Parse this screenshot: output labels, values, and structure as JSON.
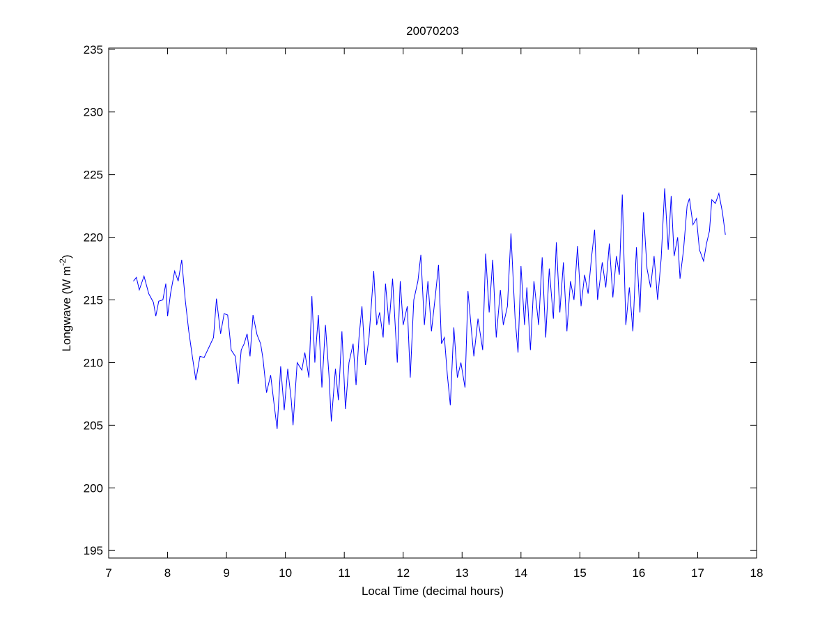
{
  "chart_data": {
    "type": "line",
    "title": "20070203",
    "xlabel": "Local Time (decimal hours)",
    "ylabel": [
      "Longwave (W m",
      "-2",
      ")"
    ],
    "xlim": [
      7,
      18
    ],
    "ylim": [
      194.4,
      235.1
    ],
    "xticks": [
      7,
      8,
      9,
      10,
      11,
      12,
      13,
      14,
      15,
      16,
      17,
      18
    ],
    "yticks": [
      195,
      200,
      205,
      210,
      215,
      220,
      225,
      230,
      235
    ],
    "grid": false,
    "x": [
      7.42,
      7.47,
      7.52,
      7.6,
      7.68,
      7.76,
      7.8,
      7.85,
      7.92,
      7.97,
      8.0,
      8.05,
      8.12,
      8.18,
      8.24,
      8.3,
      8.36,
      8.42,
      8.48,
      8.55,
      8.62,
      8.7,
      8.78,
      8.83,
      8.9,
      8.96,
      9.02,
      9.08,
      9.15,
      9.2,
      9.25,
      9.3,
      9.35,
      9.4,
      9.45,
      9.52,
      9.58,
      9.62,
      9.68,
      9.75,
      9.8,
      9.86,
      9.92,
      9.98,
      10.04,
      10.1,
      10.13,
      10.2,
      10.28,
      10.33,
      10.4,
      10.45,
      10.5,
      10.56,
      10.62,
      10.68,
      10.74,
      10.78,
      10.85,
      10.9,
      10.96,
      11.02,
      11.08,
      11.15,
      11.2,
      11.25,
      11.3,
      11.36,
      11.42,
      11.5,
      11.55,
      11.6,
      11.66,
      11.7,
      11.76,
      11.82,
      11.9,
      11.95,
      12.0,
      12.07,
      12.12,
      12.18,
      12.25,
      12.3,
      12.36,
      12.42,
      12.48,
      12.55,
      12.6,
      12.65,
      12.7,
      12.75,
      12.8,
      12.86,
      12.92,
      12.98,
      13.05,
      13.1,
      13.16,
      13.2,
      13.27,
      13.35,
      13.4,
      13.46,
      13.52,
      13.58,
      13.65,
      13.7,
      13.77,
      13.83,
      13.9,
      13.95,
      14.0,
      14.06,
      14.1,
      14.16,
      14.22,
      14.3,
      14.36,
      14.42,
      14.48,
      14.55,
      14.6,
      14.66,
      14.72,
      14.78,
      14.84,
      14.9,
      14.96,
      15.02,
      15.08,
      15.14,
      15.2,
      15.25,
      15.3,
      15.38,
      15.44,
      15.5,
      15.56,
      15.62,
      15.67,
      15.72,
      15.78,
      15.84,
      15.9,
      15.96,
      16.02,
      16.08,
      16.14,
      16.2,
      16.26,
      16.32,
      16.38,
      16.44,
      16.5,
      16.55,
      16.6,
      16.66,
      16.7,
      16.76,
      16.82,
      16.86,
      16.92,
      16.98,
      17.03,
      17.1,
      17.15,
      17.2,
      17.24,
      17.3,
      17.36,
      17.42,
      17.47
    ],
    "series": [
      {
        "color": "#0000ff",
        "values": [
          216.5,
          216.8,
          215.8,
          216.9,
          215.5,
          214.8,
          213.7,
          214.9,
          215.0,
          216.3,
          213.7,
          215.5,
          217.3,
          216.5,
          218.2,
          215.0,
          212.5,
          210.5,
          208.6,
          210.5,
          210.4,
          211.2,
          212.0,
          215.1,
          212.3,
          213.9,
          213.8,
          211.0,
          210.5,
          208.3,
          211.0,
          211.5,
          212.3,
          210.5,
          213.8,
          212.2,
          211.5,
          210.3,
          207.6,
          209.0,
          207.0,
          204.7,
          209.7,
          206.2,
          209.5,
          207.0,
          205.0,
          210.0,
          209.4,
          210.8,
          208.8,
          215.3,
          210.0,
          213.8,
          208.0,
          213.0,
          209.0,
          205.3,
          209.5,
          207.0,
          212.5,
          206.3,
          210.0,
          211.5,
          208.2,
          212.0,
          214.5,
          209.8,
          212.0,
          217.3,
          213.0,
          214.0,
          212.0,
          216.3,
          213.0,
          216.7,
          210.0,
          216.5,
          213.0,
          214.5,
          208.8,
          215.0,
          216.5,
          218.6,
          213.0,
          216.5,
          212.5,
          215.5,
          217.8,
          211.5,
          212.0,
          209.0,
          206.6,
          212.8,
          208.8,
          210.0,
          208.0,
          215.7,
          212.5,
          210.5,
          213.5,
          211.0,
          218.7,
          214.0,
          218.2,
          212.0,
          215.8,
          213.0,
          214.5,
          220.3,
          213.5,
          210.8,
          217.7,
          213.0,
          216.0,
          211.0,
          216.5,
          213.0,
          218.4,
          212.0,
          217.5,
          213.5,
          219.6,
          214.0,
          218.0,
          212.5,
          216.5,
          215.0,
          219.3,
          214.5,
          217.0,
          215.5,
          218.5,
          220.6,
          215.0,
          218.0,
          216.0,
          219.5,
          215.2,
          218.5,
          217.0,
          223.4,
          213.0,
          216.0,
          212.5,
          219.2,
          214.0,
          222.0,
          217.5,
          216.0,
          218.5,
          215.0,
          218.3,
          223.9,
          219.0,
          223.3,
          218.5,
          220.0,
          216.7,
          219.0,
          222.5,
          223.1,
          221.0,
          221.5,
          219.0,
          218.1,
          219.5,
          220.5,
          223.0,
          222.7,
          223.5,
          222.0,
          220.2
        ]
      }
    ]
  }
}
